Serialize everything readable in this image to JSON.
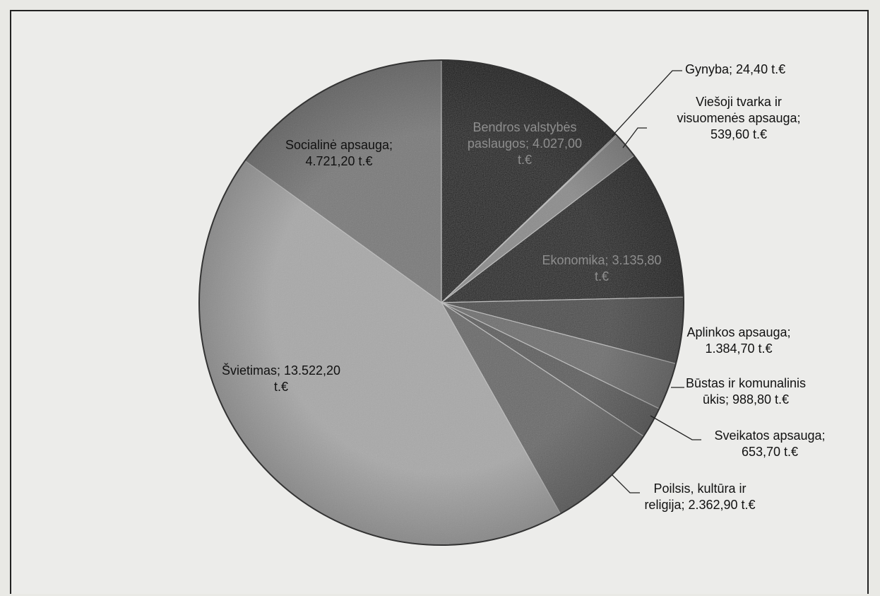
{
  "chart_data": {
    "type": "pie",
    "unit": "t.€",
    "start_angle_deg": 90,
    "direction": "clockwise",
    "slices": [
      {
        "category": "Bendros valstybės paslaugos",
        "value": 4027.0,
        "label_lines": [
          "Bendros valstybės",
          "paslaugos; 4.027,00",
          "t.€"
        ],
        "color": "#1e1e1e",
        "label_style": "inside-dark"
      },
      {
        "category": "Gynyba",
        "value": 24.4,
        "label_lines": [
          "Gynyba; 24,40 t.€"
        ],
        "color": "#5a5a5a",
        "label_style": "outside"
      },
      {
        "category": "Viešoji tvarka ir visuomenės apsauga",
        "value": 539.6,
        "label_lines": [
          "Viešoji tvarka ir",
          "visuomenės apsauga;",
          "539,60 t.€"
        ],
        "color": "#8c8c8c",
        "label_style": "outside"
      },
      {
        "category": "Ekonomika",
        "value": 3135.8,
        "label_lines": [
          "Ekonomika; 3.135,80",
          "t.€"
        ],
        "color": "#232323",
        "label_style": "inside-dark"
      },
      {
        "category": "Aplinkos apsauga",
        "value": 1384.7,
        "label_lines": [
          "Aplinkos apsauga;",
          "1.384,70 t.€"
        ],
        "color": "#4e4e4e",
        "label_style": "outside"
      },
      {
        "category": "Būstas ir komunalinis ūkis",
        "value": 988.8,
        "label_lines": [
          "Būstas ir komunalinis",
          "ūkis; 988,80 t.€"
        ],
        "color": "#707070",
        "label_style": "outside"
      },
      {
        "category": "Sveikatos apsauga",
        "value": 653.7,
        "label_lines": [
          "Sveikatos apsauga;",
          "653,70 t.€"
        ],
        "color": "#5e5e5e",
        "label_style": "outside"
      },
      {
        "category": "Poilsis, kultūra ir religija",
        "value": 2362.9,
        "label_lines": [
          "Poilsis, kultūra ir",
          "religija; 2.362,90 t.€"
        ],
        "color": "#6b6b6b",
        "label_style": "outside"
      },
      {
        "category": "Švietimas",
        "value": 13522.2,
        "label_lines": [
          "Švietimas; 13.522,20",
          "t.€"
        ],
        "color": "#a9a9a9",
        "label_style": "inside"
      },
      {
        "category": "Socialinė apsauga",
        "value": 4721.2,
        "label_lines": [
          "Socialinė apsauga;",
          "4.721,20 t.€"
        ],
        "color": "#7a7a7a",
        "label_style": "inside"
      }
    ]
  }
}
